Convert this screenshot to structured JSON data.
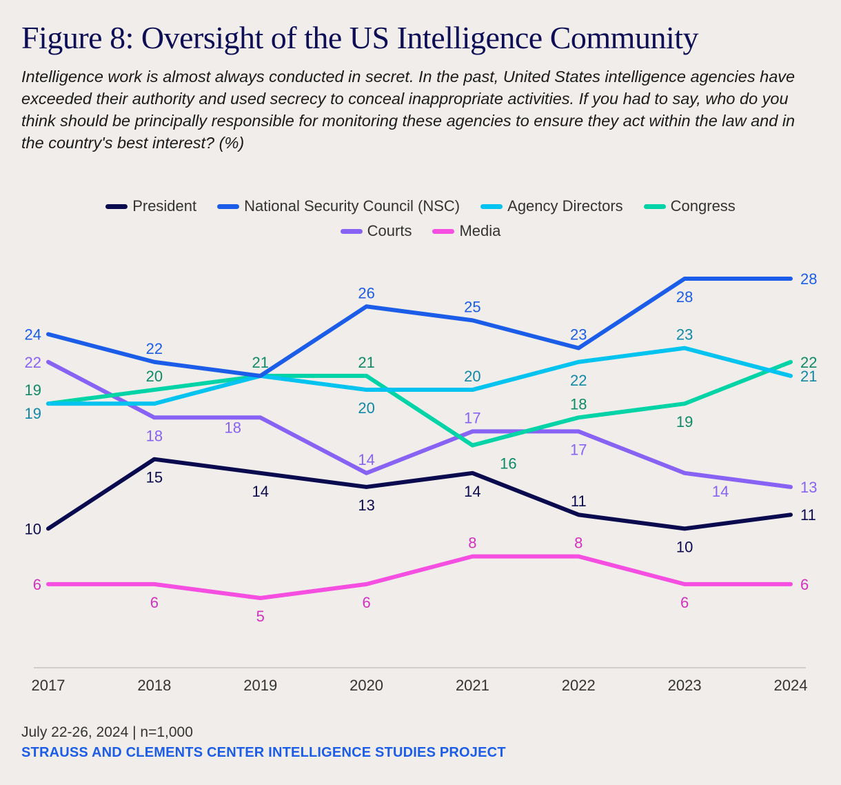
{
  "header": {
    "title": "Figure 8: Oversight of the US Intelligence Community",
    "subtitle": "Intelligence work is almost always conducted in secret. In the past, United States intelligence agencies have exceeded their authority and used secrecy to conceal inappropriate activities. If you had to say, who do you think should be principally responsible for monitoring these agencies to ensure they act within the law and in the country's best interest? (%)"
  },
  "footer": {
    "date": "July 22-26, 2024 | n=1,000",
    "source": "STRAUSS AND CLEMENTS CENTER INTELLIGENCE STUDIES PROJECT"
  },
  "chart_data": {
    "type": "line",
    "title": "Figure 8: Oversight of the US Intelligence Community",
    "xlabel": "",
    "ylabel": "%",
    "x": [
      "2017",
      "2018",
      "2019",
      "2020",
      "2021",
      "2022",
      "2023",
      "2024"
    ],
    "ylim": [
      5,
      28
    ],
    "grid": false,
    "legend_placement": "top-center",
    "series": [
      {
        "name": "President",
        "color": "#0a0a4f",
        "label_color": "#0a0a4f",
        "values": [
          10,
          15,
          14,
          13,
          14,
          11,
          10,
          11
        ],
        "label_pos": [
          "left",
          "below",
          "below",
          "below",
          "below",
          "above",
          "below",
          "right"
        ]
      },
      {
        "name": "National Security Council (NSC)",
        "color": "#1b5de8",
        "label_color": "#1b5de8",
        "values": [
          24,
          22,
          21,
          26,
          25,
          23,
          28,
          28
        ],
        "label_pos": [
          "left",
          "above",
          "none",
          "above",
          "above",
          "above",
          "below",
          "right"
        ]
      },
      {
        "name": "Agency Directors",
        "color": "#00c3f0",
        "label_color": "#1088a8",
        "values": [
          19,
          19,
          21,
          20,
          20,
          22,
          23,
          21
        ],
        "label_pos": [
          "left-below",
          "none",
          "none",
          "below",
          "above",
          "below",
          "above",
          "right"
        ]
      },
      {
        "name": "Congress",
        "color": "#00d4a6",
        "label_color": "#0e8a68",
        "values": [
          19,
          20,
          21,
          21,
          16,
          18,
          19,
          22
        ],
        "label_pos": [
          "left-above",
          "above",
          "above",
          "above",
          "below-right",
          "above",
          "below",
          "right"
        ]
      },
      {
        "name": "Courts",
        "color": "#8762f5",
        "label_color": "#8762f5",
        "values": [
          22,
          18,
          18,
          14,
          17,
          17,
          14,
          13
        ],
        "label_pos": [
          "left",
          "below",
          "below-left",
          "above",
          "above",
          "below",
          "below-right",
          "right"
        ]
      },
      {
        "name": "Media",
        "color": "#f54ee0",
        "label_color": "#d630c0",
        "values": [
          6,
          6,
          5,
          6,
          8,
          8,
          6,
          6
        ],
        "label_pos": [
          "left",
          "below",
          "below",
          "below",
          "above",
          "above",
          "below",
          "right"
        ]
      }
    ]
  }
}
